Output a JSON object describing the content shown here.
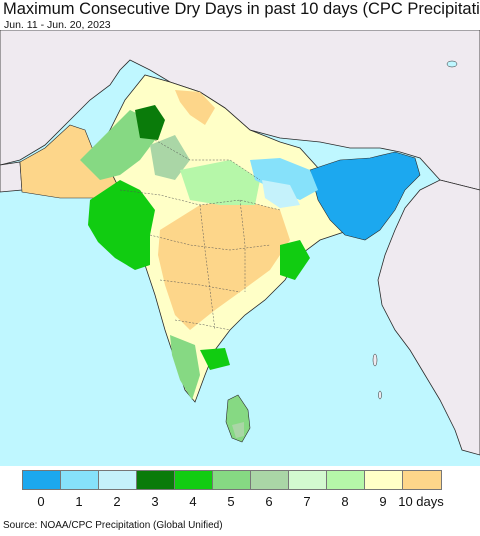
{
  "title": "Maximum Consecutive Dry Days in past 10 days (CPC Precipitation)",
  "subtitle": "Jun. 11 - Jun. 20, 2023",
  "source": "Source: NOAA/CPC Precipitation (Global Unified)",
  "colors": {
    "ocean": "#bff7ff",
    "outside_land": "#efeaf0",
    "border": "#2a2a2a"
  },
  "legend": {
    "items": [
      {
        "label": "0",
        "color": "#1ca8ef"
      },
      {
        "label": "1",
        "color": "#86e1fa"
      },
      {
        "label": "2",
        "color": "#c5f2fb"
      },
      {
        "label": "3",
        "color": "#0a7b0a"
      },
      {
        "label": "4",
        "color": "#11cc11"
      },
      {
        "label": "5",
        "color": "#86d983"
      },
      {
        "label": "6",
        "color": "#aad6a6"
      },
      {
        "label": "7",
        "color": "#d3f9d0"
      },
      {
        "label": "8",
        "color": "#b6f7a9"
      },
      {
        "label": "9",
        "color": "#ffffc7"
      },
      {
        "label": "10 days",
        "color": "#fdd68a"
      }
    ]
  }
}
